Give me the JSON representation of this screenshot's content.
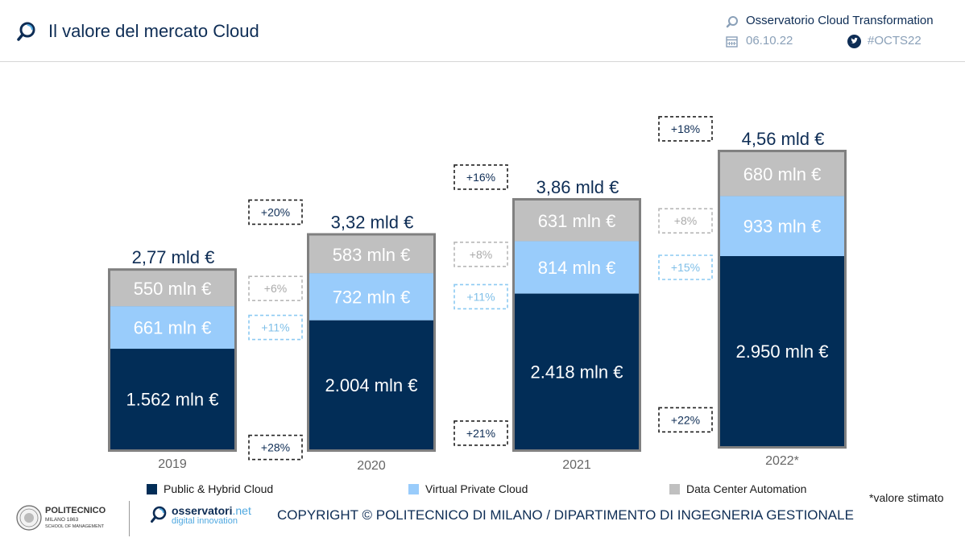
{
  "header": {
    "title": "Il valore del mercato Cloud",
    "observatory": "Osservatorio Cloud Transformation",
    "date": "06.10.22",
    "hashtag": "#OCTS22",
    "icons": [
      "magnifier-icon",
      "calendar-icon",
      "twitter-icon"
    ]
  },
  "colors": {
    "navy": "#022d57",
    "light_blue": "#99ccfb",
    "grey": "#c0c0c0",
    "frame": "#808080",
    "text_dark": "#0e2d55",
    "dashed_dark": "#222222",
    "dashed_grey": "#b8b8b8",
    "dashed_blue": "#8ccaf2"
  },
  "chart_data": {
    "type": "bar",
    "stacked": true,
    "categories": [
      "2019",
      "2020",
      "2021",
      "2022*"
    ],
    "series": [
      {
        "name": "Public & Hybrid Cloud",
        "color": "#022d57",
        "values": [
          1562,
          2004,
          2418,
          2950
        ],
        "labels": [
          "1.562 mln €",
          "2.004 mln €",
          "2.418 mln €",
          "2.950 mln €"
        ],
        "growth": [
          null,
          "+28%",
          "+21%",
          "+22%"
        ]
      },
      {
        "name": "Virtual Private Cloud",
        "color": "#99ccfb",
        "values": [
          661,
          732,
          814,
          933
        ],
        "labels": [
          "661 mln €",
          "732 mln €",
          "814 mln €",
          "933 mln €"
        ],
        "growth": [
          null,
          "+11%",
          "+11%",
          "+15%"
        ]
      },
      {
        "name": "Data Center Automation",
        "color": "#c0c0c0",
        "values": [
          550,
          583,
          631,
          680
        ],
        "labels": [
          "550 mln €",
          "583 mln €",
          "631 mln €",
          "680 mln €"
        ],
        "growth": [
          null,
          "+6%",
          "+8%",
          "+8%"
        ]
      }
    ],
    "totals": [
      {
        "value": 2.77,
        "label": "2,77 mld €"
      },
      {
        "value": 3.32,
        "label": "3,32 mld €"
      },
      {
        "value": 3.86,
        "label": "3,86 mld €"
      },
      {
        "value": 4.56,
        "label": "4,56 mld €"
      }
    ],
    "total_growth": [
      null,
      "+20%",
      "+16%",
      "+18%"
    ],
    "unit": "mln €",
    "legend_position": "bottom",
    "note": "*valore stimato"
  },
  "footer": {
    "polimi_name": "POLITECNICO",
    "polimi_sub": "MILANO 1863",
    "polimi_school": "SCHOOL OF MANAGEMENT",
    "osservatori_main": "osservatori",
    "osservatori_suffix": ".net",
    "osservatori_sub": "digital innovation",
    "copyright": "COPYRIGHT © POLITECNICO DI MILANO / DIPARTIMENTO DI INGEGNERIA GESTIONALE"
  }
}
